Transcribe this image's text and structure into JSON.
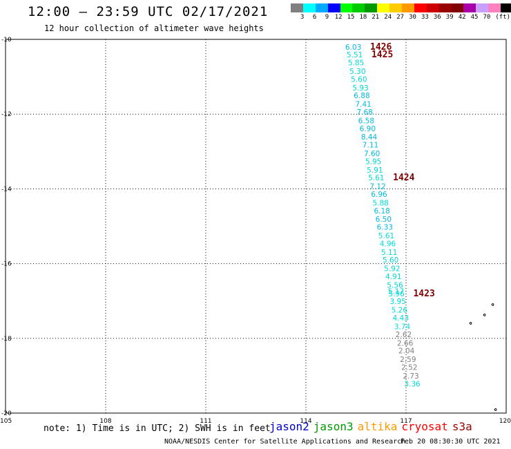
{
  "header": {
    "title": "12:00 – 23:59 UTC 02/17/2021",
    "subtitle": "12 hour collection of altimeter wave heights"
  },
  "legend": {
    "unit": "(ft)",
    "colors": [
      "#808080",
      "#00ffff",
      "#00aaff",
      "#0000ff",
      "#00ff00",
      "#00cc00",
      "#009900",
      "#ffff00",
      "#ffcc00",
      "#ff9900",
      "#ff0000",
      "#cc0000",
      "#990000",
      "#800000",
      "#aa00aa",
      "#c8a0ff",
      "#ff80c0",
      "#000000"
    ],
    "labels": [
      "3",
      "6",
      "9",
      "12",
      "15",
      "18",
      "21",
      "24",
      "27",
      "30",
      "33",
      "36",
      "39",
      "42",
      "45",
      "70"
    ]
  },
  "map": {
    "lon_ticks": [
      "105",
      "108",
      "111",
      "114",
      "117",
      "120"
    ],
    "lat_ticks": [
      "-10",
      "-12",
      "-14",
      "-16",
      "-18",
      "-20"
    ],
    "gridline_lons": [
      108,
      111,
      114,
      117
    ],
    "gridline_lats": [
      -12,
      -14,
      -16,
      -18
    ],
    "lon_range": [
      105,
      120
    ],
    "lat_range": [
      -20,
      -10
    ],
    "island_marks": 4
  },
  "track": {
    "color_low": "#00d8d8",
    "color_mid": "#00b8e0",
    "color_grey": "#808080",
    "measurements": [
      {
        "value": "6.03",
        "lat": -10.2,
        "color": "#00b8e0"
      },
      {
        "value": "5.51",
        "lat": -10.41,
        "color": "#00d8d8"
      },
      {
        "value": "5.85",
        "lat": -10.62,
        "color": "#00d8d8"
      },
      {
        "value": "5.30",
        "lat": -10.85,
        "color": "#00d8d8"
      },
      {
        "value": "5.60",
        "lat": -11.06,
        "color": "#00d8d8"
      },
      {
        "value": "5.93",
        "lat": -11.29,
        "color": "#00d8d8"
      },
      {
        "value": "6.88",
        "lat": -11.5,
        "color": "#00b8e0"
      },
      {
        "value": "7.41",
        "lat": -11.73,
        "color": "#00b8e0"
      },
      {
        "value": "7.68",
        "lat": -11.94,
        "color": "#00b8e0"
      },
      {
        "value": "6.58",
        "lat": -12.17,
        "color": "#00b8e0"
      },
      {
        "value": "6.90",
        "lat": -12.38,
        "color": "#00b8e0"
      },
      {
        "value": "8.44",
        "lat": -12.61,
        "color": "#00b8e0"
      },
      {
        "value": "7.11",
        "lat": -12.82,
        "color": "#00b8e0"
      },
      {
        "value": "7.60",
        "lat": -13.05,
        "color": "#00b8e0"
      },
      {
        "value": "5.95",
        "lat": -13.26,
        "color": "#00d8d8"
      },
      {
        "value": "5.91",
        "lat": -13.49,
        "color": "#00d8d8"
      },
      {
        "value": "5.61",
        "lat": -13.7,
        "color": "#00d8d8"
      },
      {
        "value": "7.12",
        "lat": -13.93,
        "color": "#00b8e0"
      },
      {
        "value": "6.96",
        "lat": -14.14,
        "color": "#00b8e0"
      },
      {
        "value": "5.88",
        "lat": -14.37,
        "color": "#00d8d8"
      },
      {
        "value": "6.18",
        "lat": -14.58,
        "color": "#00b8e0"
      },
      {
        "value": "6.50",
        "lat": -14.81,
        "color": "#00b8e0"
      },
      {
        "value": "6.33",
        "lat": -15.02,
        "color": "#00b8e0"
      },
      {
        "value": "5.61",
        "lat": -15.25,
        "color": "#00d8d8"
      },
      {
        "value": "4.96",
        "lat": -15.46,
        "color": "#00d8d8"
      },
      {
        "value": "5.11",
        "lat": -15.69,
        "color": "#00d8d8"
      },
      {
        "value": "5.60",
        "lat": -15.9,
        "color": "#00d8d8"
      },
      {
        "value": "5.92",
        "lat": -16.13,
        "color": "#00d8d8"
      },
      {
        "value": "4.91",
        "lat": -16.34,
        "color": "#00d8d8"
      },
      {
        "value": "5.56",
        "lat": -16.57,
        "color": "#00d8d8"
      },
      {
        "value": "5.17",
        "lat": -16.74,
        "color": "#00d8d8"
      },
      {
        "value": "5.96",
        "lat": -16.8,
        "color": "#00d8d8"
      },
      {
        "value": "3.95",
        "lat": -17.01,
        "color": "#00d8d8"
      },
      {
        "value": "5.26",
        "lat": -17.24,
        "color": "#00d8d8"
      },
      {
        "value": "4.43",
        "lat": -17.45,
        "color": "#00d8d8"
      },
      {
        "value": "3.74",
        "lat": -17.68,
        "color": "#00d8d8"
      },
      {
        "value": "2.62",
        "lat": -17.89,
        "color": "#808080"
      },
      {
        "value": "2.66",
        "lat": -18.12,
        "color": "#808080"
      },
      {
        "value": "2.04",
        "lat": -18.33,
        "color": "#808080"
      },
      {
        "value": "2.59",
        "lat": -18.56,
        "color": "#808080"
      },
      {
        "value": "2.52",
        "lat": -18.77,
        "color": "#808080"
      },
      {
        "value": "2.73",
        "lat": -19.0,
        "color": "#808080"
      },
      {
        "value": "3.36",
        "lat": -19.21,
        "color": "#00d8d8"
      }
    ],
    "passes": [
      {
        "label": "1426",
        "lat": -10.2
      },
      {
        "label": "1425",
        "lat": -10.41
      },
      {
        "label": "1424",
        "lat": -13.7
      },
      {
        "label": "1423",
        "lat": -16.8
      }
    ]
  },
  "footer": {
    "note": "note: 1) Time is in UTC; 2) SWH is in feet",
    "satellites": [
      {
        "name": "jason2",
        "color": "#0000cc"
      },
      {
        "name": "jason3",
        "color": "#009900"
      },
      {
        "name": "altika",
        "color": "#ff9900"
      },
      {
        "name": "cryosat",
        "color": "#ff0000"
      },
      {
        "name": "s3a",
        "color": "#990000"
      }
    ],
    "credit": "NOAA/NESDIS Center for Satellite Applications and Research",
    "timestamp": "Feb 20 08:30:30 UTC 2021"
  }
}
